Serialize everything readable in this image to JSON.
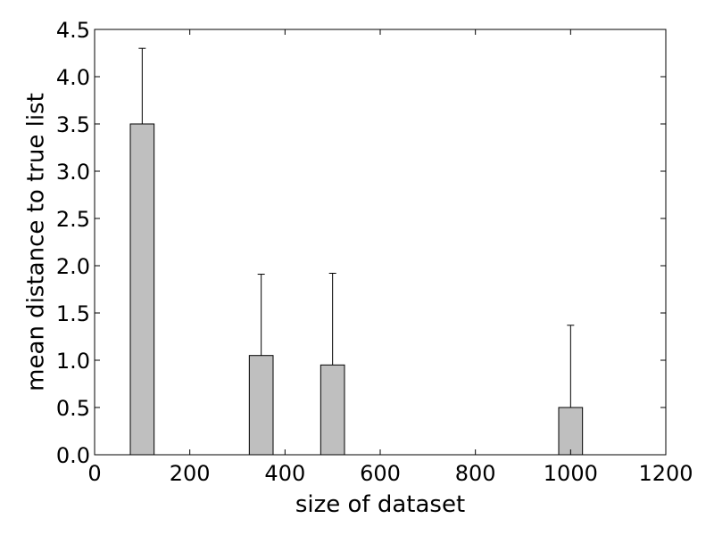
{
  "chart_data": {
    "type": "bar",
    "title": "",
    "xlabel": "size of dataset",
    "ylabel": "mean distance to true list",
    "x": [
      100,
      350,
      500,
      1000
    ],
    "values": [
      3.5,
      1.05,
      0.95,
      0.5
    ],
    "error_upper": [
      0.8,
      0.86,
      0.97,
      0.87
    ],
    "bar_width": 50,
    "xlim": [
      0,
      1200
    ],
    "ylim": [
      0,
      4.5
    ],
    "xticks": [
      0,
      200,
      400,
      600,
      800,
      1000,
      1200
    ],
    "xtick_labels": [
      "0",
      "200",
      "400",
      "600",
      "800",
      "1000",
      "1200"
    ],
    "yticks": [
      0.0,
      0.5,
      1.0,
      1.5,
      2.0,
      2.5,
      3.0,
      3.5,
      4.0,
      4.5
    ],
    "ytick_labels": [
      "0.0",
      "0.5",
      "1.0",
      "1.5",
      "2.0",
      "2.5",
      "3.0",
      "3.5",
      "4.0",
      "4.5"
    ],
    "bar_color": "#bfbfbf",
    "edge_color": "#000000",
    "grid": false,
    "legend": "none"
  }
}
